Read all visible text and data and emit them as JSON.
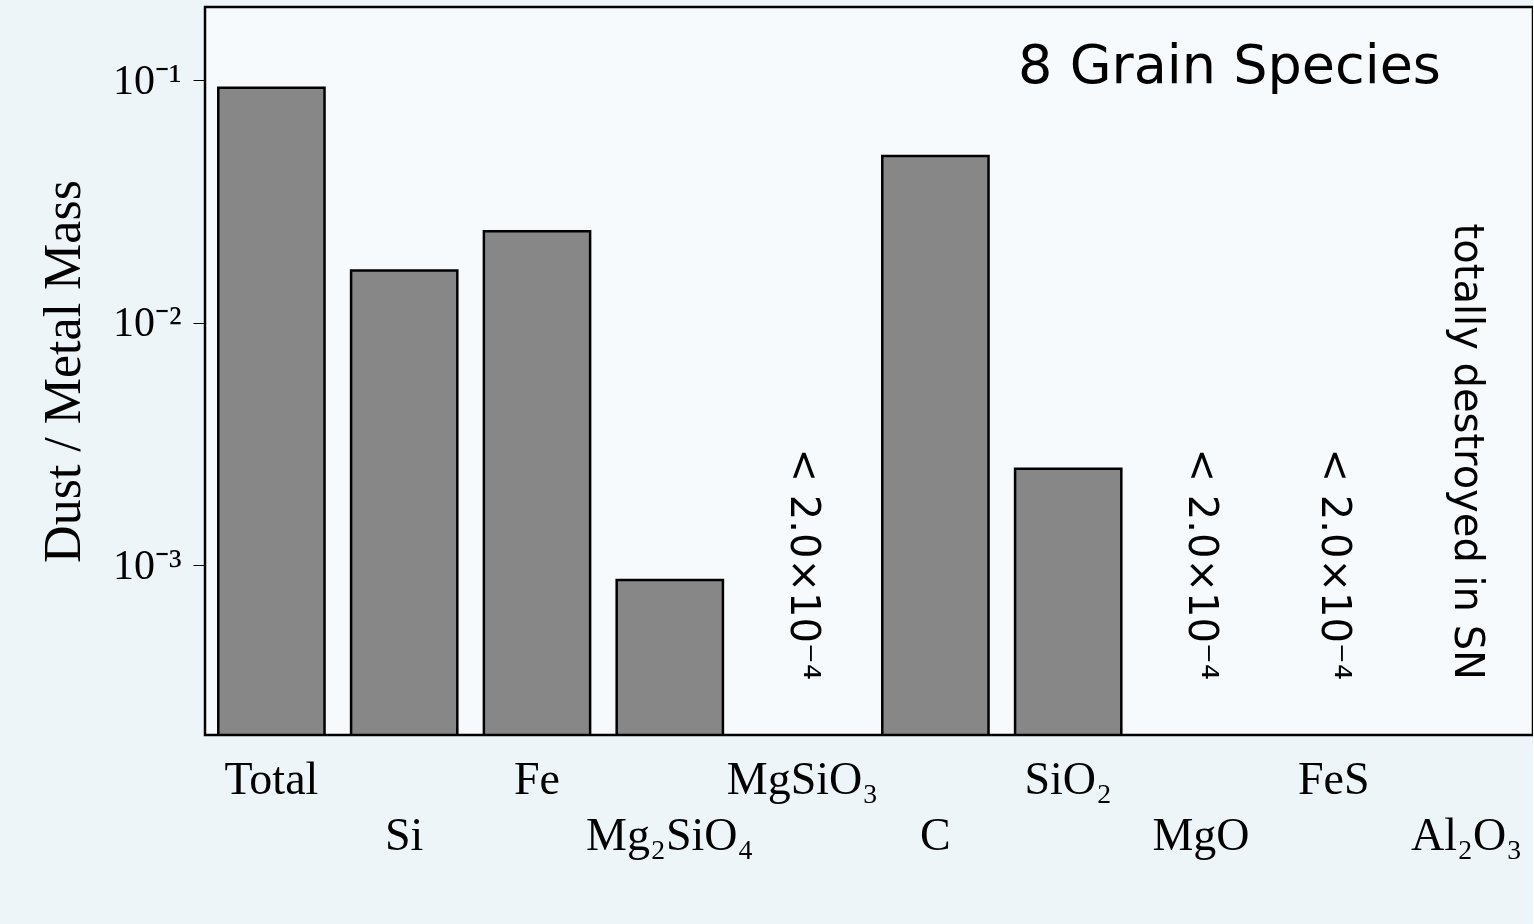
{
  "chart_data": {
    "type": "bar",
    "ylabel": "Dust / Metal Mass",
    "categories": [
      "Total",
      "Si",
      "Fe",
      "Mg₂SiO₄",
      "MgSiO₃",
      "C",
      "SiO₂",
      "MgO",
      "FeS",
      "Al₂O₃"
    ],
    "values": [
      0.093,
      0.0164,
      0.0238,
      0.00087,
      null,
      0.0487,
      0.0025,
      null,
      null,
      null
    ],
    "color": "#878787",
    "log": true,
    "ylim": [
      0.0002,
      0.2
    ],
    "yticks": [
      {
        "value": 0.001,
        "label": "10⁻³"
      },
      {
        "value": 0.01,
        "label": "10⁻²"
      },
      {
        "value": 0.1,
        "label": "10⁻¹"
      }
    ],
    "annotations": [
      "8 Grain Species",
      "< 2.0×10⁻⁴",
      "< 2.0×10⁻⁴",
      "< 2.0×10⁻⁴",
      "totally destroyed in SN"
    ],
    "grid": false
  }
}
